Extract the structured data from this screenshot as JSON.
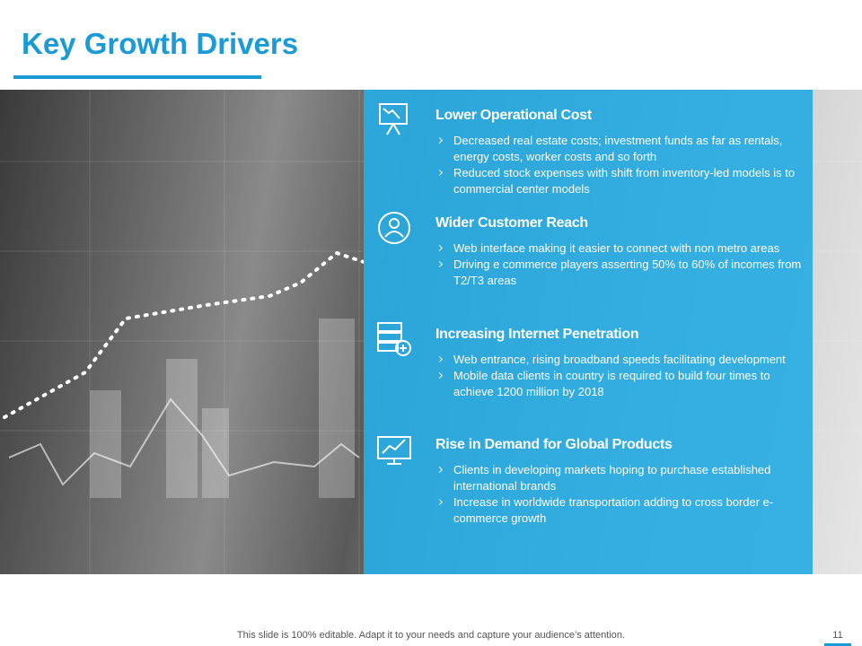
{
  "header": {
    "title": "Key Growth Drivers"
  },
  "sections": [
    {
      "heading": "Lower Operational Cost",
      "bullets": [
        "Decreased real estate costs; investment funds as far as rentals, energy costs, worker costs and so forth",
        "Reduced stock expenses with shift from  inventory-led models is to commercial center models"
      ]
    },
    {
      "heading": "Wider Customer Reach",
      "bullets": [
        "Web interface making it easier to connect with non metro areas",
        "Driving e commerce players asserting 50% to 60% of incomes from T2/T3 areas"
      ]
    },
    {
      "heading": "Increasing Internet Penetration",
      "bullets": [
        "Web entrance, rising broadband speeds facilitating development",
        "Mobile data clients in country is required to build four times to achieve 1200 million by 2018"
      ]
    },
    {
      "heading": "Rise in Demand for Global Products",
      "bullets": [
        "Clients in developing  markets hoping to purchase established international brands",
        "Increase in worldwide transportation adding to cross border e-commerce growth"
      ]
    }
  ],
  "footer": {
    "note": "This slide is 100% editable. Adapt it to your needs and capture your audience’s attention.",
    "page_number": "11"
  }
}
